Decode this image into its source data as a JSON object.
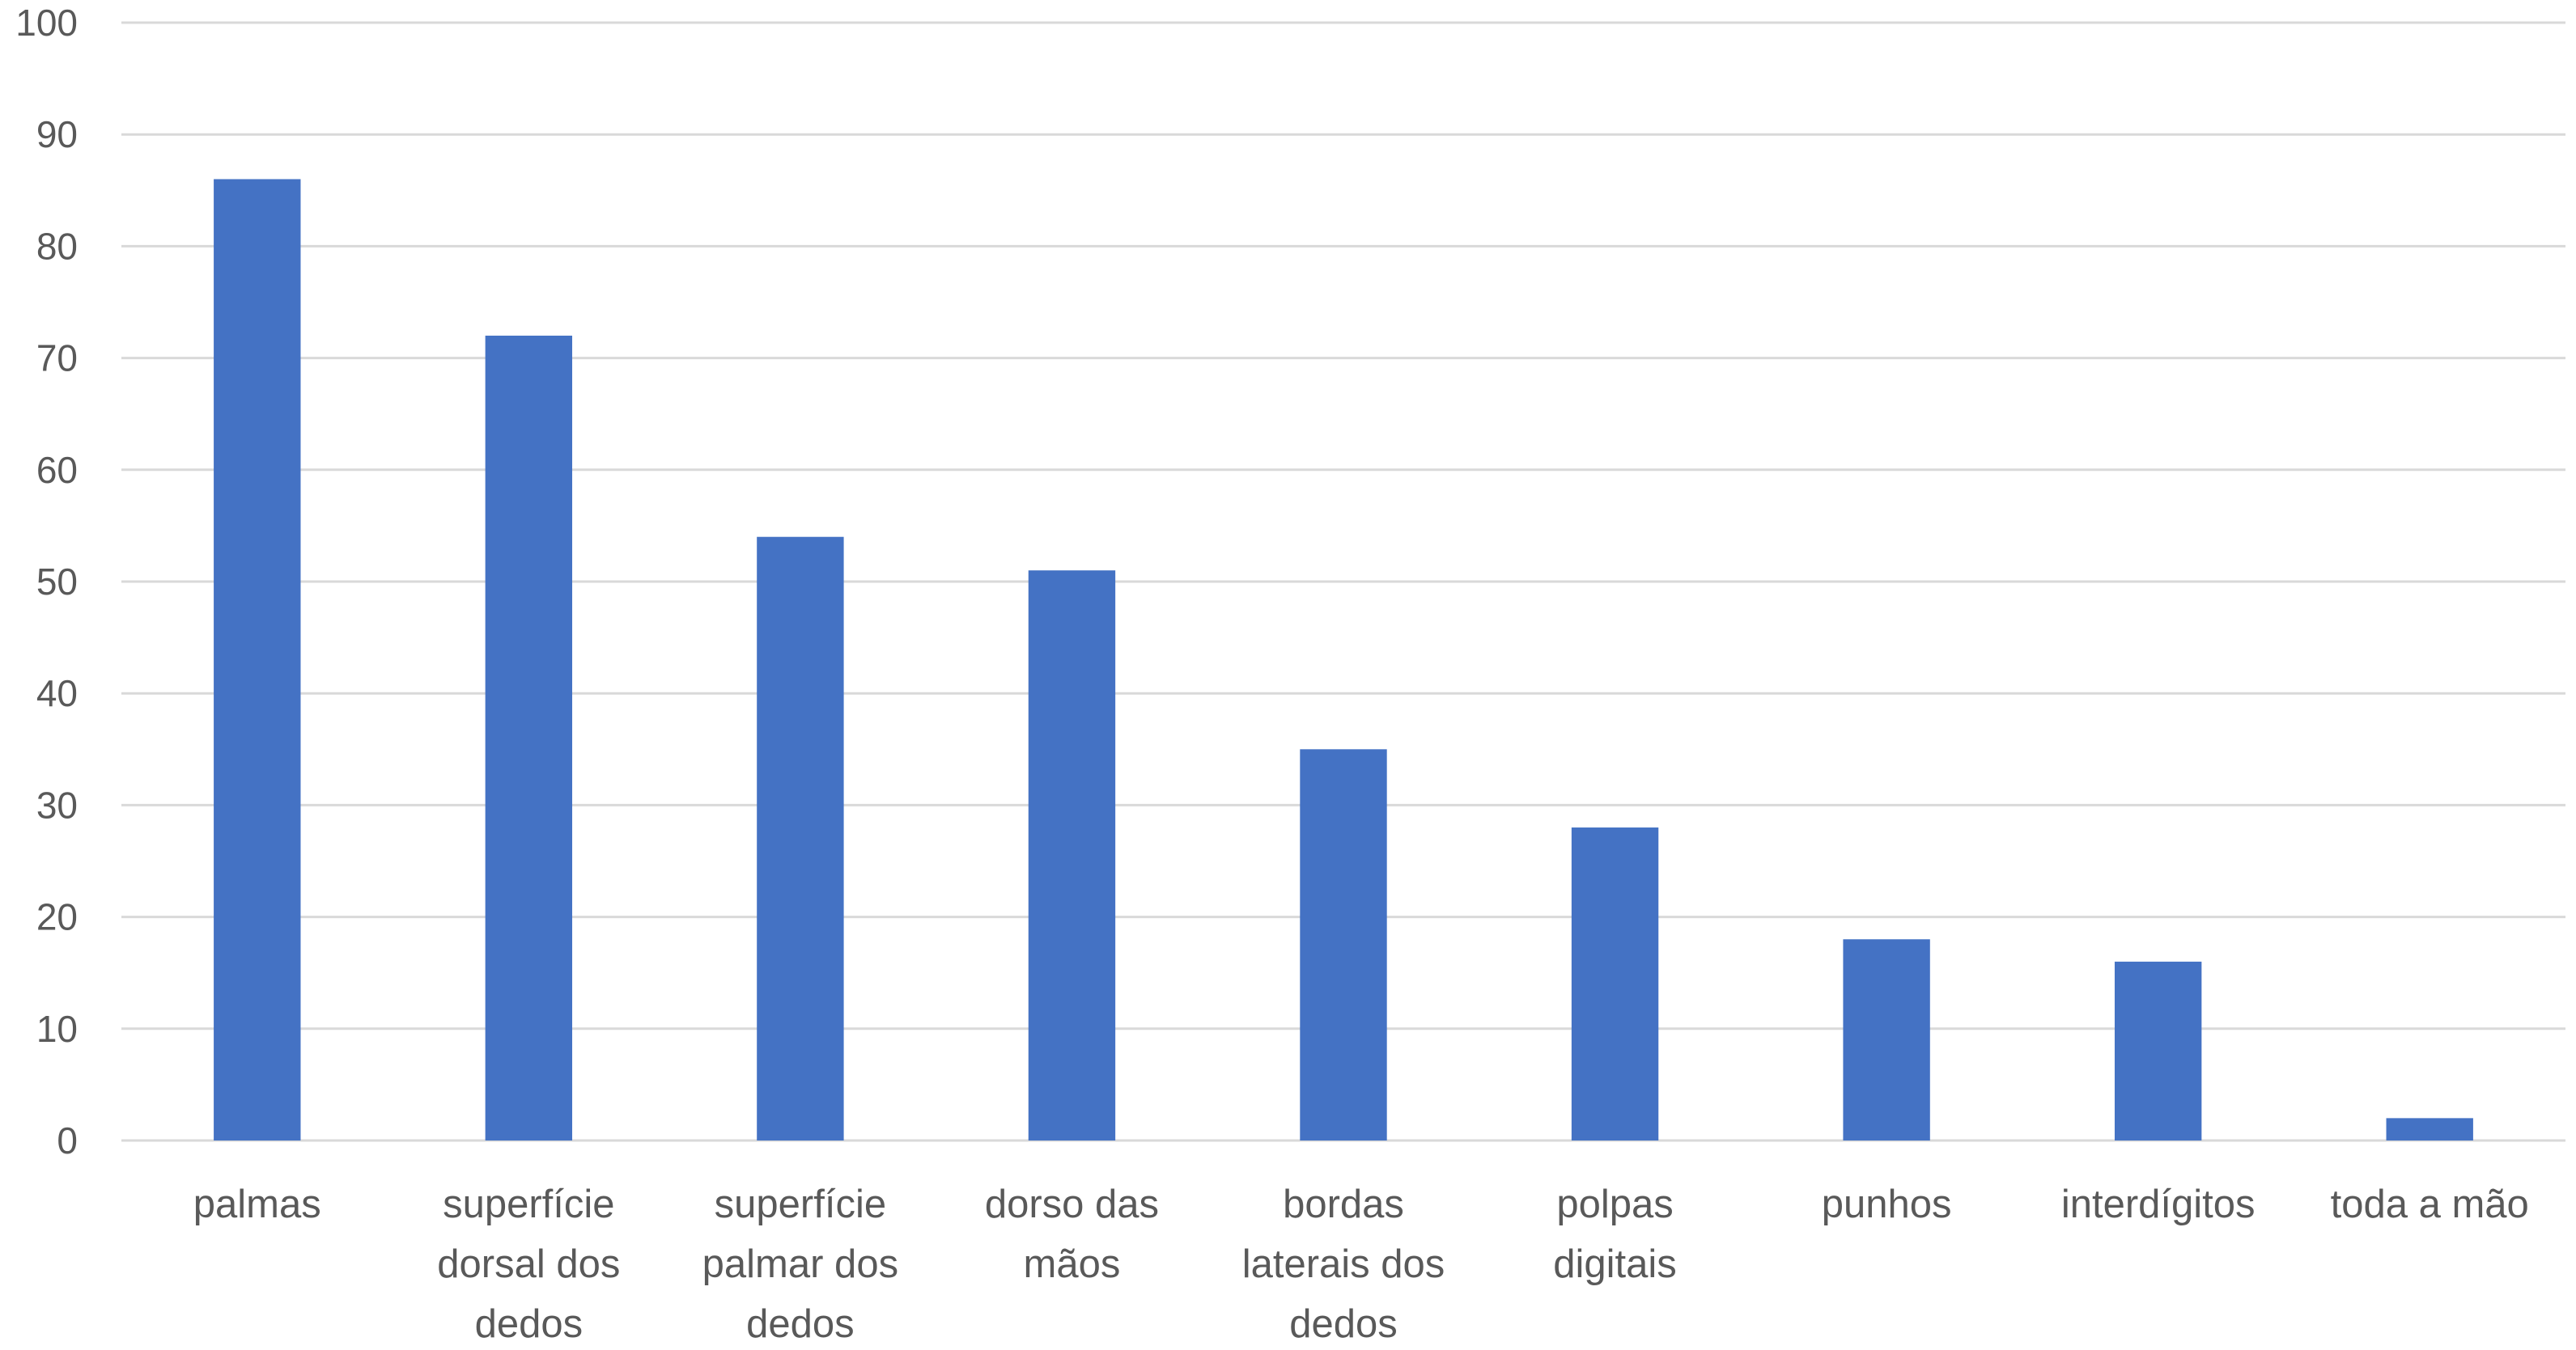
{
  "chart_data": {
    "type": "bar",
    "categories": [
      "palmas",
      "superfície dorsal dos dedos",
      "superfície palmar dos dedos",
      "dorso das mãos",
      "bordas laterais dos dedos",
      "polpas digitais",
      "punhos",
      "interdígitos",
      "toda a mão"
    ],
    "category_lines": [
      [
        "palmas"
      ],
      [
        "superfície",
        "dorsal dos",
        "dedos"
      ],
      [
        "superfície",
        "palmar dos",
        "dedos"
      ],
      [
        "dorso das",
        "mãos"
      ],
      [
        "bordas",
        "laterais dos",
        "dedos"
      ],
      [
        "polpas",
        "digitais"
      ],
      [
        "punhos"
      ],
      [
        "interdígitos"
      ],
      [
        "toda a mão"
      ]
    ],
    "values": [
      86,
      72,
      54,
      51,
      35,
      28,
      18,
      16,
      2
    ],
    "title": "",
    "xlabel": "",
    "ylabel": "",
    "ylim": [
      0,
      100
    ],
    "yticks": [
      0,
      10,
      20,
      30,
      40,
      50,
      60,
      70,
      80,
      90,
      100
    ],
    "grid": true,
    "legend": "none",
    "colors": {
      "bar": "#4472C4",
      "grid": "#D9D9D9",
      "text": "#595959"
    }
  }
}
